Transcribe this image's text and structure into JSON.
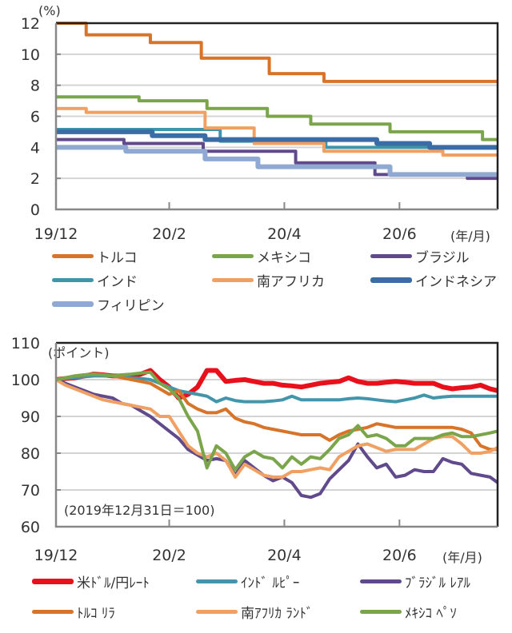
{
  "chart_data": [
    {
      "type": "line",
      "step": true,
      "ylabel": "(%)",
      "xunit_label": "(年/月)",
      "ylim": [
        0,
        12
      ],
      "yticks": [
        0,
        2,
        4,
        6,
        8,
        10,
        12
      ],
      "xlim": [
        "2019-12-31",
        "2020-08-21"
      ],
      "xticks": [
        {
          "date": "2019-12-31",
          "label": "19/12"
        },
        {
          "date": "2020-02-29",
          "label": "20/2"
        },
        {
          "date": "2020-04-30",
          "label": "20/4"
        },
        {
          "date": "2020-06-30",
          "label": "20/6"
        }
      ],
      "grid": true,
      "legend_position": "bottom",
      "series": [
        {
          "name": "トルコ",
          "color": "#d8742a",
          "points": [
            [
              "2019-12-31",
              12
            ],
            [
              "2020-01-16",
              11.25
            ],
            [
              "2020-02-19",
              10.75
            ],
            [
              "2020-03-17",
              9.75
            ],
            [
              "2020-04-22",
              8.75
            ],
            [
              "2020-05-21",
              8.25
            ]
          ]
        },
        {
          "name": "メキシコ",
          "color": "#7aa54a",
          "points": [
            [
              "2019-12-31",
              7.25
            ],
            [
              "2020-02-13",
              7.0
            ],
            [
              "2020-03-20",
              6.5
            ],
            [
              "2020-04-21",
              6.0
            ],
            [
              "2020-05-14",
              5.5
            ],
            [
              "2020-06-25",
              5.0
            ],
            [
              "2020-08-13",
              4.5
            ]
          ]
        },
        {
          "name": "ブラジル",
          "color": "#604a8c",
          "points": [
            [
              "2019-12-31",
              4.5
            ],
            [
              "2020-02-05",
              4.25
            ],
            [
              "2020-03-18",
              3.75
            ],
            [
              "2020-05-06",
              3.0
            ],
            [
              "2020-06-17",
              2.25
            ],
            [
              "2020-08-05",
              2.0
            ]
          ]
        },
        {
          "name": "インド",
          "color": "#3f95a9",
          "points": [
            [
              "2019-12-31",
              5.15
            ],
            [
              "2020-03-27",
              4.4
            ],
            [
              "2020-05-22",
              4.0
            ]
          ]
        },
        {
          "name": "南アフリカ",
          "color": "#f0a062",
          "points": [
            [
              "2019-12-31",
              6.5
            ],
            [
              "2020-01-16",
              6.25
            ],
            [
              "2020-03-19",
              5.25
            ],
            [
              "2020-04-14",
              4.25
            ],
            [
              "2020-05-21",
              3.75
            ],
            [
              "2020-07-23",
              3.5
            ]
          ]
        },
        {
          "name": "インドネシア",
          "color": "#3a6da6",
          "thick": true,
          "points": [
            [
              "2019-12-31",
              5.0
            ],
            [
              "2020-02-20",
              4.75
            ],
            [
              "2020-03-19",
              4.5
            ],
            [
              "2020-06-18",
              4.25
            ],
            [
              "2020-07-16",
              4.0
            ]
          ]
        },
        {
          "name": "フィリピン",
          "color": "#8fa9d2",
          "thick": true,
          "points": [
            [
              "2019-12-31",
              4.0
            ],
            [
              "2020-02-06",
              3.75
            ],
            [
              "2020-03-19",
              3.25
            ],
            [
              "2020-04-16",
              2.75
            ],
            [
              "2020-06-25",
              2.25
            ]
          ]
        }
      ]
    },
    {
      "type": "line",
      "ylabel": "(ポイント)",
      "xunit_label": "(年/月)",
      "annotation": "(2019年12月31日＝100)",
      "ylim": [
        60,
        110
      ],
      "yticks": [
        60,
        70,
        80,
        90,
        100,
        110
      ],
      "xlim": [
        "2019-12-31",
        "2020-08-21"
      ],
      "xticks": [
        {
          "date": "2019-12-31",
          "label": "19/12"
        },
        {
          "date": "2020-02-29",
          "label": "20/2"
        },
        {
          "date": "2020-04-30",
          "label": "20/4"
        },
        {
          "date": "2020-06-30",
          "label": "20/6"
        }
      ],
      "grid": true,
      "legend_position": "bottom",
      "x": [
        "2019-12-31",
        "2020-01-05",
        "2020-01-10",
        "2020-01-15",
        "2020-01-20",
        "2020-01-25",
        "2020-01-30",
        "2020-02-04",
        "2020-02-09",
        "2020-02-14",
        "2020-02-19",
        "2020-02-24",
        "2020-02-29",
        "2020-03-05",
        "2020-03-10",
        "2020-03-15",
        "2020-03-20",
        "2020-03-25",
        "2020-03-30",
        "2020-04-04",
        "2020-04-09",
        "2020-04-14",
        "2020-04-19",
        "2020-04-24",
        "2020-04-29",
        "2020-05-04",
        "2020-05-09",
        "2020-05-14",
        "2020-05-19",
        "2020-05-24",
        "2020-05-29",
        "2020-06-03",
        "2020-06-08",
        "2020-06-13",
        "2020-06-18",
        "2020-06-23",
        "2020-06-28",
        "2020-07-03",
        "2020-07-08",
        "2020-07-13",
        "2020-07-18",
        "2020-07-23",
        "2020-07-28",
        "2020-08-02",
        "2020-08-07",
        "2020-08-12",
        "2020-08-17",
        "2020-08-21"
      ],
      "series": [
        {
          "name": "米ﾄﾞﾙ/円ﾚｰﾄ",
          "color": "#e8111b",
          "thick": true,
          "values": [
            100,
            100.3,
            100.5,
            101,
            101.5,
            101.3,
            101,
            101,
            101,
            101.5,
            102.5,
            100,
            98,
            95,
            96,
            98,
            102.5,
            102.5,
            99.5,
            99.8,
            100,
            99.5,
            99,
            99,
            98.5,
            98.3,
            98,
            98.5,
            99,
            99.3,
            99.5,
            100.5,
            99.5,
            99,
            99,
            99.3,
            99.5,
            99.3,
            99,
            99,
            99,
            98,
            97.5,
            97.8,
            98,
            98.5,
            97.5,
            97
          ]
        },
        {
          "name": "ｲﾝﾄﾞ ﾙﾋﾟｰ",
          "color": "#4396aa",
          "values": [
            100,
            100.3,
            100.5,
            100.8,
            101,
            101,
            101,
            100.8,
            100.5,
            100.3,
            100,
            99,
            98,
            97,
            96.5,
            96,
            95.5,
            94,
            95,
            94.3,
            94,
            94,
            94,
            94.2,
            94.5,
            95.5,
            94.5,
            94.5,
            94.5,
            94.5,
            94.5,
            94.8,
            95,
            94.8,
            94.5,
            94.2,
            94,
            94.5,
            95,
            95.8,
            95,
            95.3,
            95.5,
            95.5,
            95.5,
            95.5,
            95.5,
            95.5
          ]
        },
        {
          "name": "ﾌﾞﾗｼﾞﾙ ﾚｱﾙ",
          "color": "#604a8c",
          "values": [
            100,
            99,
            98,
            97,
            96,
            95.5,
            95,
            93.5,
            93,
            91.5,
            90,
            88,
            86,
            84,
            81,
            79.5,
            78,
            78.5,
            78,
            74,
            78,
            76,
            74,
            72.5,
            73.5,
            72,
            68.5,
            68,
            69,
            73,
            75.5,
            78,
            82.5,
            79,
            76,
            77,
            73.5,
            74,
            75.5,
            75,
            75,
            78.5,
            77.5,
            77,
            74.5,
            74,
            73.5,
            72
          ]
        },
        {
          "name": "ﾄﾙｺ ﾘﾗ",
          "color": "#d8742a",
          "values": [
            100,
            100.5,
            101,
            101.3,
            101.5,
            101.3,
            101,
            100.5,
            100,
            99.5,
            99,
            97.5,
            96,
            97,
            93.5,
            92,
            91,
            91,
            92,
            89.5,
            88.5,
            88,
            87,
            86.5,
            86,
            85.5,
            85,
            85,
            85,
            83.5,
            85,
            86,
            86.5,
            87,
            88,
            87.5,
            87,
            87,
            87,
            87,
            87,
            87,
            87,
            86.5,
            85.5,
            82,
            81,
            81
          ]
        },
        {
          "name": "南ｱﾌﾘｶ ﾗﾝﾄﾞ",
          "color": "#f0a062",
          "values": [
            100,
            98.5,
            97.5,
            96.5,
            95.5,
            94.5,
            94,
            93.5,
            93,
            92.5,
            92,
            90,
            90,
            86,
            82,
            80,
            79,
            80,
            78,
            73.5,
            77,
            75.5,
            74,
            73.5,
            73.5,
            75,
            75,
            75.5,
            76,
            75.5,
            79,
            80.5,
            82,
            82.5,
            81.5,
            80.5,
            81,
            81,
            81,
            82.5,
            84,
            84.5,
            84.5,
            82.5,
            80,
            80,
            80.5,
            81.5
          ]
        },
        {
          "name": "ﾒｷｼｺ ﾍﾟｿ",
          "color": "#7aa54a",
          "values": [
            100,
            100.5,
            101,
            101.3,
            101.5,
            101.3,
            101,
            101.3,
            101.5,
            101.8,
            102,
            99,
            97.5,
            95,
            90,
            86,
            76,
            82,
            80,
            75.5,
            79,
            80.5,
            79,
            78.5,
            76,
            79,
            77,
            79,
            78.5,
            81,
            84,
            85,
            87.5,
            84.5,
            85,
            84,
            82,
            82,
            84,
            84,
            84,
            85,
            85.5,
            84.5,
            84.5,
            85,
            85.5,
            86
          ]
        }
      ]
    }
  ]
}
